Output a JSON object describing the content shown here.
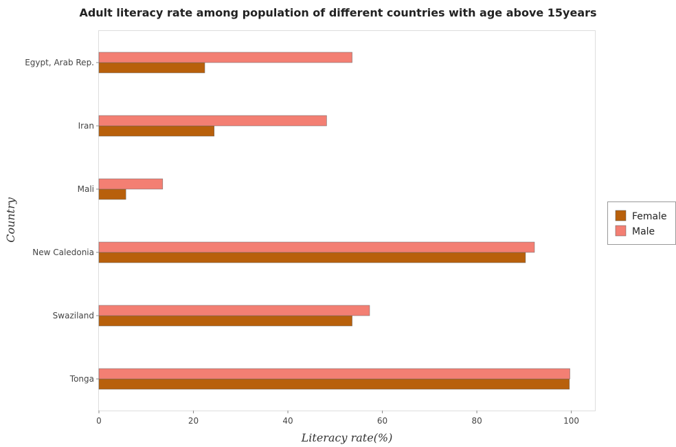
{
  "chart_data": {
    "type": "bar",
    "orientation": "horizontal",
    "title": "Adult literacy rate among population of different countries with age above 15years",
    "xlabel": "Literacy rate(%)",
    "ylabel": "Country",
    "xlim": [
      0,
      105
    ],
    "xticks": [
      0,
      20,
      40,
      60,
      80,
      100
    ],
    "categories": [
      "Egypt, Arab Rep.",
      "Iran",
      "Mali",
      "New Caledonia",
      "Swaziland",
      "Tonga"
    ],
    "series": [
      {
        "name": "Female",
        "color": "#b8600b",
        "values": [
          22.4,
          24.4,
          5.7,
          90.3,
          53.6,
          99.6
        ]
      },
      {
        "name": "Male",
        "color": "#f37f73",
        "values": [
          53.6,
          48.2,
          13.5,
          92.2,
          57.3,
          99.7
        ]
      }
    ],
    "grid": false,
    "legend_position": "right"
  }
}
